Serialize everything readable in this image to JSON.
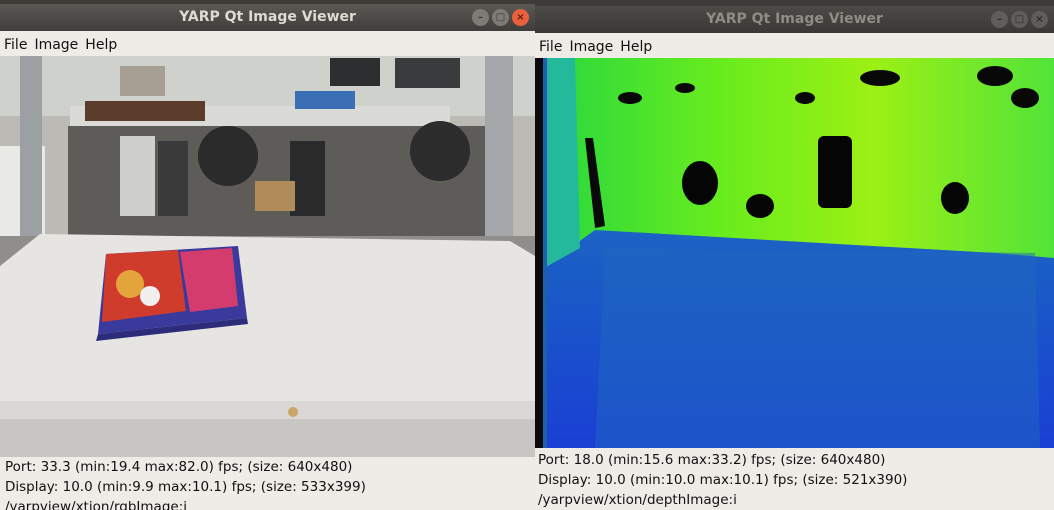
{
  "windows": [
    {
      "title": "YARP Qt Image Viewer",
      "menu": [
        "File",
        "Image",
        "Help"
      ],
      "status": [
        "Port: 33.3 (min:19.4 max:82.0) fps; (size: 640x480)",
        "Display: 10.0 (min:9.9 max:10.1) fps; (size: 533x399)",
        "/yarpview/xtion/rgbImage:i"
      ]
    },
    {
      "title": "YARP Qt Image Viewer",
      "menu": [
        "File",
        "Image",
        "Help"
      ],
      "status": [
        "Port: 18.0 (min:15.6 max:33.2) fps; (size: 640x480)",
        "Display: 10.0 (min:10.0 max:10.1) fps; (size: 521x390)",
        "/yarpview/xtion/depthImage:i"
      ]
    }
  ],
  "window_buttons": [
    "–",
    "□",
    "×"
  ],
  "images": {
    "rgb": "rgb-camera-image",
    "depth": "depth-camera-image"
  }
}
